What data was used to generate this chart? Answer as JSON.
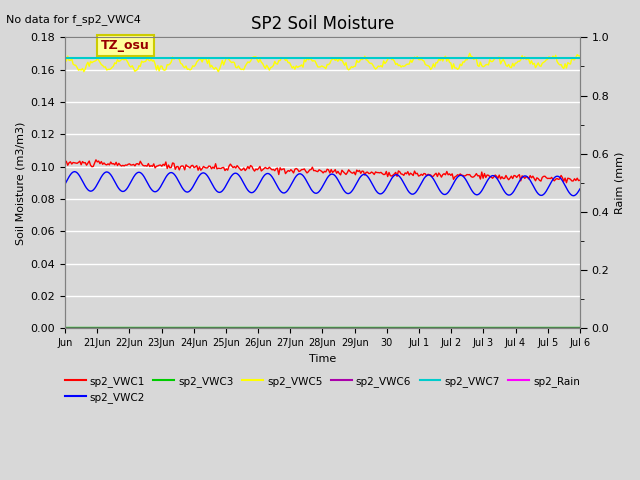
{
  "title": "SP2 Soil Moisture",
  "subtitle": "No data for f_sp2_VWC4",
  "ylabel_left": "Soil Moisture (m3/m3)",
  "ylabel_right": "Raim (mm)",
  "xlabel": "Time",
  "ylim_left": [
    0.0,
    0.18
  ],
  "ylim_right": [
    0.0,
    1.0
  ],
  "background_color": "#d8d8d8",
  "plot_bg_color": "#d8d8d8",
  "tz_label": "TZ_osu",
  "x_tick_labels": [
    "Jun",
    "21Jun",
    "22Jun",
    "23Jun",
    "24Jun",
    "25Jun",
    "26Jun",
    "27Jun",
    "28Jun",
    "29Jun",
    "30",
    "Jul 1",
    "Jul 2",
    "Jul 3",
    "Jul 4",
    "Jul 5",
    "Jul 6"
  ],
  "legend_entries": [
    {
      "label": "sp2_VWC1",
      "color": "#ff0000"
    },
    {
      "label": "sp2_VWC2",
      "color": "#0000ff"
    },
    {
      "label": "sp2_VWC3",
      "color": "#00cc00"
    },
    {
      "label": "sp2_VWC5",
      "color": "#ffff00"
    },
    {
      "label": "sp2_VWC6",
      "color": "#aa00aa"
    },
    {
      "label": "sp2_VWC7",
      "color": "#00cccc"
    },
    {
      "label": "sp2_Rain",
      "color": "#ff00ff"
    }
  ],
  "vwc1_color": "#ff0000",
  "vwc2_color": "#0000ff",
  "vwc3_color": "#00cc00",
  "vwc5_color": "#ffff00",
  "vwc6_color": "#aa00aa",
  "vwc7_color": "#00cccc",
  "rain_color": "#ff00ff",
  "yticks_left": [
    0.0,
    0.02,
    0.04,
    0.06,
    0.08,
    0.1,
    0.12,
    0.14,
    0.16,
    0.18
  ],
  "yticks_right": [
    0.0,
    0.2,
    0.4,
    0.6,
    0.8,
    1.0
  ],
  "title_fontsize": 12,
  "label_fontsize": 8,
  "tick_fontsize": 8,
  "xtick_fontsize": 7
}
